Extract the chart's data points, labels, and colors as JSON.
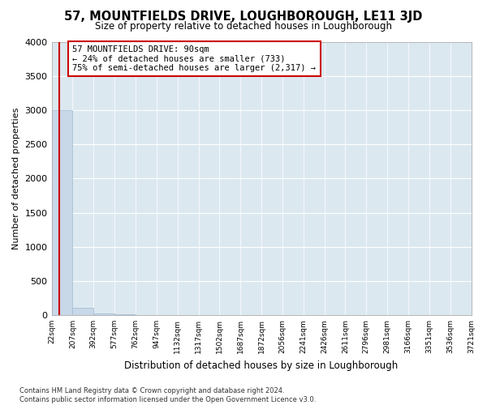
{
  "title": "57, MOUNTFIELDS DRIVE, LOUGHBOROUGH, LE11 3JD",
  "subtitle": "Size of property relative to detached houses in Loughborough",
  "xlabel": "Distribution of detached houses by size in Loughborough",
  "ylabel": "Number of detached properties",
  "bin_edges": [
    22,
    207,
    392,
    577,
    762,
    947,
    1132,
    1317,
    1502,
    1687,
    1872,
    2056,
    2241,
    2426,
    2611,
    2796,
    2981,
    3166,
    3351,
    3536,
    3721
  ],
  "bin_labels": [
    "22sqm",
    "207sqm",
    "392sqm",
    "577sqm",
    "762sqm",
    "947sqm",
    "1132sqm",
    "1317sqm",
    "1502sqm",
    "1687sqm",
    "1872sqm",
    "2056sqm",
    "2241sqm",
    "2426sqm",
    "2611sqm",
    "2796sqm",
    "2981sqm",
    "3166sqm",
    "3351sqm",
    "3536sqm",
    "3721sqm"
  ],
  "bar_heights": [
    3000,
    110,
    30,
    10,
    5,
    3,
    2,
    1,
    1,
    1,
    0,
    0,
    0,
    0,
    0,
    0,
    0,
    0,
    0,
    0
  ],
  "bar_color": "#c8d8e8",
  "bar_edge_color": "#a8c0d4",
  "subject_value": 90,
  "red_line_color": "#cc0000",
  "annotation_text": "57 MOUNTFIELDS DRIVE: 90sqm\n← 24% of detached houses are smaller (733)\n75% of semi-detached houses are larger (2,317) →",
  "annotation_box_color": "#ffffff",
  "annotation_box_edge": "#cc0000",
  "footer_line1": "Contains HM Land Registry data © Crown copyright and database right 2024.",
  "footer_line2": "Contains public sector information licensed under the Open Government Licence v3.0.",
  "ylim": [
    0,
    4000
  ],
  "yticks": [
    0,
    500,
    1000,
    1500,
    2000,
    2500,
    3000,
    3500,
    4000
  ],
  "background_color": "#ffffff",
  "plot_bg_color": "#dce8f0"
}
